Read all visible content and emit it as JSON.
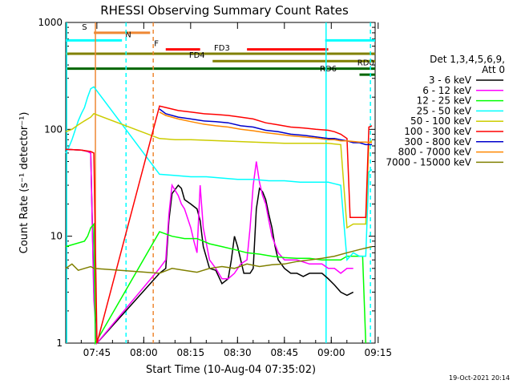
{
  "chart_data": {
    "type": "line",
    "title": "RHESSI Observing Summary Count Rates",
    "xlabel": "Start Time (10-Aug-04 07:35:02)",
    "ylabel": "Count Rate (s⁻¹ detector⁻¹)",
    "yscale": "log",
    "ylim": [
      1,
      1000
    ],
    "xlim_minutes": [
      0,
      99
    ],
    "x_ticks": [
      "07:45",
      "08:00",
      "08:15",
      "08:30",
      "08:45",
      "09:00",
      "09:15"
    ],
    "y_ticks": [
      "1",
      "10",
      "100",
      "1000"
    ],
    "legend": {
      "title_lines": [
        "Det 1,3,4,5,6,9,",
        "Att 0"
      ],
      "placement": "right"
    },
    "footer_date": "19-Oct-2021 20:14",
    "flags": [
      {
        "label": "S",
        "color": "#ee8833",
        "y": 800,
        "segments": [
          [
            9,
            27
          ]
        ],
        "label_x": 6
      },
      {
        "label": "N",
        "color": "#00ffff",
        "y": 680,
        "segments": [
          [
            0,
            18
          ],
          [
            83,
            99
          ]
        ],
        "label_x": 20
      },
      {
        "label": "F",
        "color": "#ff0000",
        "y": 560,
        "segments": [
          [
            32,
            43
          ],
          [
            58,
            84
          ]
        ],
        "label_x": 29
      },
      {
        "label": "FD3",
        "color": "#808000",
        "y": 510,
        "segments": [
          [
            0,
            99
          ]
        ],
        "label_x": 50
      },
      {
        "label": "FD4",
        "color": "#808000",
        "y": 435,
        "segments": [
          [
            47,
            99
          ]
        ],
        "label_x": 42
      },
      {
        "label": "RD0",
        "color": "#006600",
        "y": 370,
        "segments": [
          [
            0,
            99
          ]
        ],
        "label_x": 96
      },
      {
        "label": "RD6",
        "color": "#006600",
        "y": 325,
        "segments": [
          [
            94,
            100
          ]
        ],
        "label_x": 84
      }
    ],
    "vlines": [
      {
        "x": 0.3,
        "color": "#00ffff",
        "style": "solid"
      },
      {
        "x": 9.5,
        "color": "#ee8833",
        "style": "solid"
      },
      {
        "x": 19.3,
        "color": "#00ffff",
        "style": "dashed"
      },
      {
        "x": 28.0,
        "color": "#ee8833",
        "style": "dashed"
      },
      {
        "x": 83.3,
        "color": "#00ffff",
        "style": "solid"
      },
      {
        "x": 97.5,
        "color": "#00ffff",
        "style": "dashed"
      }
    ],
    "series": [
      {
        "name": "3 - 6 keV",
        "color": "#000000",
        "x": [
          0,
          5,
          7,
          8,
          9,
          10,
          30,
          32,
          33,
          34,
          36,
          37,
          38,
          40,
          42,
          43,
          44,
          46,
          48,
          50,
          52,
          53,
          54,
          55,
          56,
          57,
          59,
          60,
          61,
          62,
          63,
          64,
          65,
          66,
          67,
          68,
          70,
          72,
          74,
          76,
          78,
          80,
          82,
          84,
          86,
          88,
          90,
          92
        ],
        "y": [
          65,
          64,
          62,
          60,
          3,
          1,
          4.5,
          5,
          14,
          25,
          30,
          28,
          22,
          20,
          18,
          14,
          8,
          5,
          4.8,
          3.6,
          4,
          6,
          10,
          8,
          6,
          4.5,
          4.5,
          5,
          18,
          28,
          26,
          22,
          16,
          12,
          8,
          6,
          5,
          4.5,
          4.5,
          4.2,
          4.5,
          4.5,
          4.5,
          4,
          3.5,
          3,
          2.8,
          3
        ]
      },
      {
        "name": "6 - 12 keV",
        "color": "#ff00ff",
        "x": [
          0,
          5,
          7,
          8,
          9,
          10,
          30,
          32,
          33,
          34,
          36,
          37,
          38,
          40,
          41,
          42,
          43,
          44,
          46,
          48,
          50,
          52,
          54,
          56,
          58,
          59,
          60,
          61,
          62,
          63,
          64,
          65,
          66,
          68,
          70,
          74,
          78,
          82,
          84,
          86,
          88,
          90,
          92
        ],
        "y": [
          65,
          64,
          62,
          60,
          2.5,
          1,
          5,
          6,
          16,
          30,
          24,
          20,
          18,
          12,
          9,
          7,
          30,
          12,
          6,
          5,
          4,
          4,
          4.5,
          5.5,
          6,
          12,
          30,
          50,
          32,
          24,
          20,
          14,
          10,
          7,
          6,
          6,
          5.5,
          5.5,
          5,
          5,
          4.5,
          5,
          5
        ]
      },
      {
        "name": "12 - 25 keV",
        "color": "#00ff00",
        "x": [
          0,
          6,
          7,
          8,
          9,
          9.5,
          30,
          34,
          38,
          42,
          46,
          50,
          54,
          58,
          62,
          66,
          70,
          74,
          78,
          82,
          84,
          88,
          90,
          92,
          95,
          96
        ],
        "y": [
          8,
          9,
          10,
          12,
          13,
          1,
          11,
          10,
          9.5,
          9.5,
          8.5,
          8,
          7.5,
          7,
          6.8,
          6.5,
          6.3,
          6.2,
          6.2,
          6,
          6,
          6,
          6.5,
          6.5,
          6.5,
          1
        ]
      },
      {
        "name": "25 - 50 keV",
        "color": "#00ffff",
        "x": [
          0,
          1,
          2,
          3,
          4,
          5,
          6,
          7,
          8,
          9,
          30,
          35,
          40,
          45,
          50,
          55,
          60,
          65,
          70,
          75,
          80,
          84,
          86,
          88,
          90,
          92,
          94,
          96,
          97,
          98
        ],
        "y": [
          60,
          68,
          80,
          98,
          120,
          140,
          160,
          200,
          240,
          250,
          38,
          37,
          36,
          36,
          35,
          34,
          34,
          33,
          33,
          32,
          32,
          32,
          31,
          30,
          6,
          7,
          6.5,
          6.5,
          40,
          42
        ]
      },
      {
        "name": "50 - 100 keV",
        "color": "#cccc00",
        "x": [
          0,
          2,
          4,
          6,
          8,
          9,
          30,
          35,
          40,
          45,
          50,
          55,
          60,
          65,
          70,
          75,
          80,
          84,
          86,
          88,
          90,
          92,
          94,
          96,
          97,
          98
        ],
        "y": [
          95,
          100,
          110,
          120,
          130,
          140,
          82,
          80,
          80,
          79,
          78,
          77,
          76,
          75,
          74,
          74,
          74,
          74,
          73,
          72,
          12,
          13,
          13,
          13,
          75,
          78
        ]
      },
      {
        "name": "100 - 300 keV",
        "color": "#ff0000",
        "x": [
          0,
          5,
          8,
          9,
          10,
          30,
          32,
          36,
          40,
          44,
          48,
          52,
          56,
          60,
          64,
          68,
          72,
          76,
          80,
          84,
          86,
          88,
          90,
          91,
          92,
          94,
          96,
          97,
          98
        ],
        "y": [
          65,
          64,
          62,
          60,
          1,
          165,
          160,
          150,
          145,
          140,
          138,
          135,
          130,
          125,
          115,
          110,
          105,
          103,
          100,
          98,
          95,
          90,
          82,
          15,
          15,
          15,
          15,
          105,
          108
        ]
      },
      {
        "name": "300 - 800 keV",
        "color": "#0000cc",
        "x": [
          30,
          32,
          36,
          40,
          44,
          48,
          52,
          56,
          60,
          64,
          68,
          72,
          76,
          80,
          84,
          86,
          88,
          90,
          92,
          94,
          96,
          98
        ],
        "y": [
          155,
          140,
          130,
          125,
          120,
          118,
          115,
          108,
          105,
          98,
          95,
          90,
          88,
          85,
          82,
          82,
          80,
          78,
          75,
          75,
          72,
          72
        ]
      },
      {
        "name": "800 - 7000 keV",
        "color": "#ff8800",
        "x": [
          30,
          32,
          36,
          40,
          44,
          48,
          52,
          56,
          60,
          64,
          68,
          72,
          76,
          80,
          84,
          86,
          88,
          90,
          92,
          94,
          96,
          98
        ],
        "y": [
          145,
          135,
          125,
          118,
          112,
          108,
          105,
          100,
          97,
          93,
          90,
          87,
          85,
          83,
          80,
          80,
          78,
          78,
          77,
          76,
          76,
          75
        ]
      },
      {
        "name": "7000 - 15000 keV",
        "color": "#808000",
        "x": [
          0,
          2,
          4,
          6,
          8,
          9,
          30,
          34,
          38,
          42,
          46,
          50,
          54,
          58,
          62,
          66,
          70,
          74,
          78,
          82,
          86,
          90,
          94,
          98
        ],
        "y": [
          5,
          5.5,
          4.8,
          5,
          5.2,
          5,
          4.5,
          5,
          4.8,
          4.6,
          5,
          5.2,
          5,
          5.5,
          5.2,
          5.4,
          5.5,
          5.8,
          6,
          6.2,
          6.5,
          7,
          7.5,
          8
        ]
      }
    ]
  }
}
